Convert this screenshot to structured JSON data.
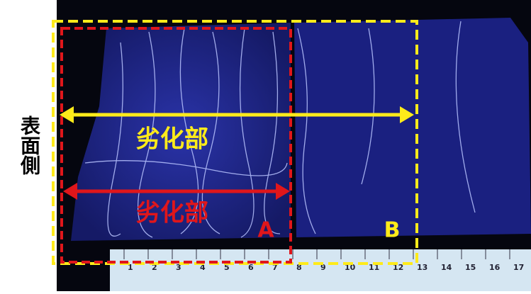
{
  "side_label": "表面側",
  "annotations": {
    "outer_label": "劣化部",
    "inner_label": "劣化部",
    "box_a": "A",
    "box_b": "B"
  },
  "ruler": {
    "numbers": [
      "1",
      "2",
      "3",
      "4",
      "5",
      "6",
      "7",
      "8",
      "9",
      "10",
      "11",
      "12",
      "13",
      "14",
      "15",
      "16",
      "17"
    ]
  }
}
